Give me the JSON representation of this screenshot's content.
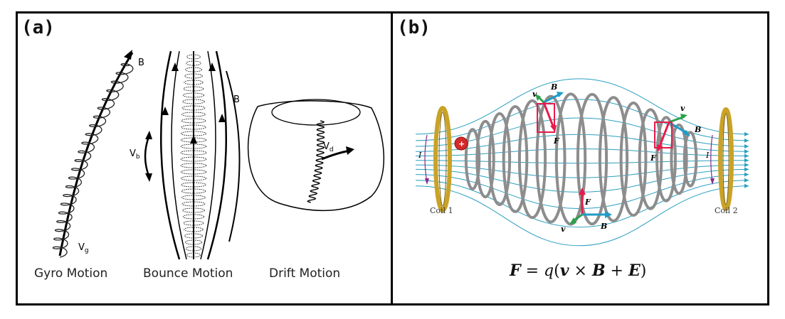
{
  "panel_a": {
    "label": "(a)",
    "captions": {
      "gyro": "Gyro Motion",
      "bounce": "Bounce Motion",
      "drift": "Drift Motion"
    },
    "symbols": {
      "b_gyro": "B",
      "vg": "V",
      "vg_sub": "g",
      "b_bounce": "B",
      "vb": "V",
      "vb_sub": "b",
      "vd": "V",
      "vd_sub": "d"
    }
  },
  "panel_b": {
    "label": "(b)",
    "coil1": "Coil 1",
    "coil2": "Coil 2",
    "current_left": "I",
    "current_right": "I",
    "particle_charge": "+",
    "vec_v": "v",
    "vec_B": "B",
    "vec_F": "F",
    "equation": {
      "lhs": "F",
      "equals": " = ",
      "q": "q",
      "open": "(",
      "v": "v",
      "times": " × ",
      "B": "B",
      "plus": " + ",
      "E": "E",
      "close": ")"
    }
  },
  "colors": {
    "field_line": "#2a9fc0",
    "helix": "#8d8d8d",
    "coil": "#c9a227",
    "force": "#e8194a",
    "velocity": "#2aa14a",
    "b_vector": "#1f9cc8",
    "particle": "#d42a2a"
  }
}
